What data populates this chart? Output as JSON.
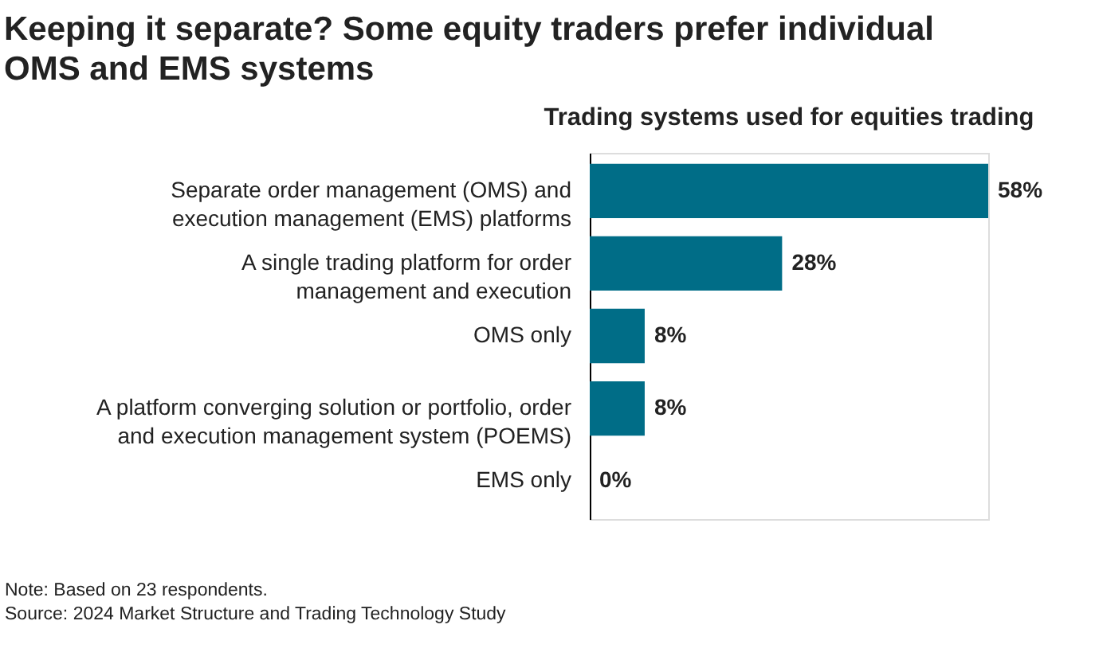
{
  "chart_data": {
    "type": "bar",
    "orientation": "horizontal",
    "title": "Keeping it separate? Some equity traders prefer individual\nOMS and EMS systems",
    "subtitle": "Trading systems used for equities trading",
    "categories": [
      "Separate order management (OMS) and\nexecution management (EMS) platforms",
      "A single trading platform for order\nmanagement and execution",
      "OMS only",
      "A platform converging solution or portfolio, order\nand execution management system (POEMS)",
      "EMS only"
    ],
    "values": [
      58,
      28,
      8,
      8,
      0
    ],
    "value_labels": [
      "58%",
      "28%",
      "8%",
      "8%",
      "0%"
    ],
    "color": "#006d87",
    "annotations": [
      "Note: Based on 23 respondents.",
      "Source: 2024 Market Structure and Trading Technology Study"
    ]
  }
}
